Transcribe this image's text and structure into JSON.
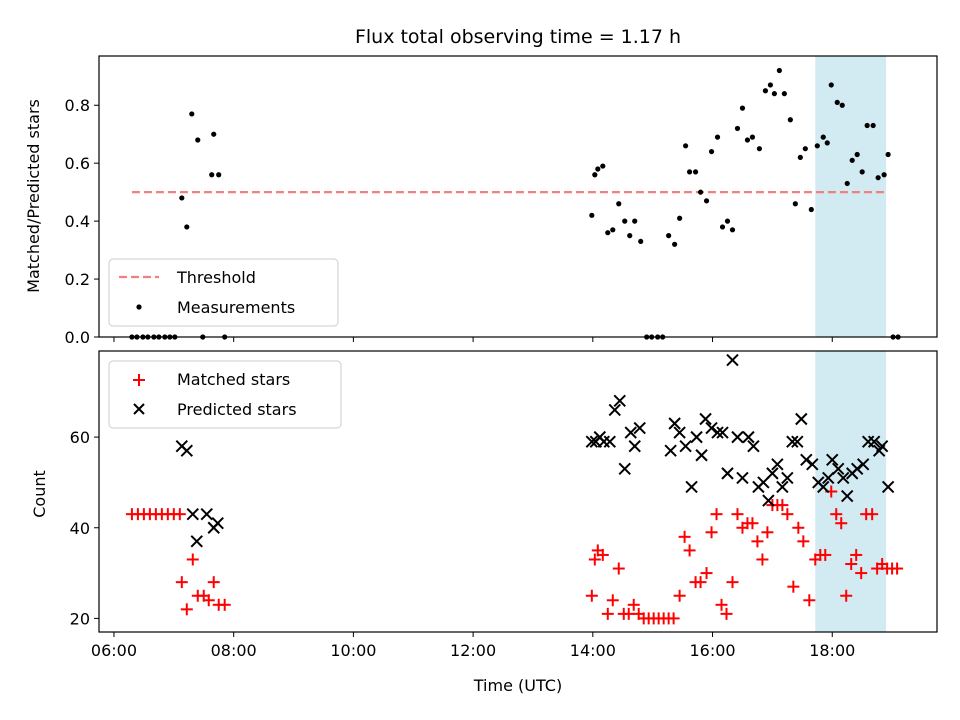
{
  "chart_data": [
    {
      "type": "scatter",
      "title": "Flux total observing time = 1.17 h",
      "ylabel": "Matched/Predicted stars",
      "xlim": [
        "05:45",
        "19:45"
      ],
      "ylim": [
        0,
        0.97
      ],
      "yticks": [
        0.0,
        0.2,
        0.4,
        0.6,
        0.8
      ],
      "ytick_labels": [
        "0.0",
        "0.2",
        "0.4",
        "0.6",
        "0.8"
      ],
      "legend_position": "lower-left",
      "highlight_span": {
        "x": [
          "17:43",
          "18:54"
        ],
        "color": "#add8e6"
      },
      "threshold": {
        "name": "Threshold",
        "value": 0.5,
        "x": [
          "06:18",
          "18:54"
        ],
        "color": "#f08080",
        "style": "dashed"
      },
      "series": [
        {
          "name": "Measurements",
          "marker": "dot",
          "color": "#000000",
          "points": [
            [
              "06:18",
              0
            ],
            [
              "06:23",
              0
            ],
            [
              "06:29",
              0
            ],
            [
              "06:34",
              0
            ],
            [
              "06:40",
              0
            ],
            [
              "06:45",
              0
            ],
            [
              "06:51",
              0
            ],
            [
              "06:56",
              0
            ],
            [
              "07:01",
              0
            ],
            [
              "07:08",
              0.48
            ],
            [
              "07:13",
              0.38
            ],
            [
              "07:18",
              0.77
            ],
            [
              "07:24",
              0.68
            ],
            [
              "07:29",
              0
            ],
            [
              "07:38",
              0.56
            ],
            [
              "07:40",
              0.7
            ],
            [
              "07:45",
              0.56
            ],
            [
              "07:51",
              0
            ],
            [
              "13:59",
              0.42
            ],
            [
              "14:02",
              0.56
            ],
            [
              "14:05",
              0.58
            ],
            [
              "14:10",
              0.59
            ],
            [
              "14:15",
              0.36
            ],
            [
              "14:20",
              0.37
            ],
            [
              "14:26",
              0.46
            ],
            [
              "14:32",
              0.4
            ],
            [
              "14:37",
              0.35
            ],
            [
              "14:42",
              0.4
            ],
            [
              "14:48",
              0.33
            ],
            [
              "14:54",
              0
            ],
            [
              "14:59",
              0
            ],
            [
              "15:05",
              0
            ],
            [
              "15:10",
              0
            ],
            [
              "15:16",
              0.35
            ],
            [
              "15:22",
              0.32
            ],
            [
              "15:27",
              0.41
            ],
            [
              "15:33",
              0.66
            ],
            [
              "15:37",
              0.57
            ],
            [
              "15:43",
              0.57
            ],
            [
              "15:48",
              0.5
            ],
            [
              "15:54",
              0.47
            ],
            [
              "15:59",
              0.64
            ],
            [
              "16:05",
              0.69
            ],
            [
              "16:10",
              0.38
            ],
            [
              "16:15",
              0.4
            ],
            [
              "16:20",
              0.37
            ],
            [
              "16:25",
              0.72
            ],
            [
              "16:30",
              0.79
            ],
            [
              "16:35",
              0.68
            ],
            [
              "16:40",
              0.69
            ],
            [
              "16:47",
              0.65
            ],
            [
              "16:53",
              0.85
            ],
            [
              "16:58",
              0.87
            ],
            [
              "17:02",
              0.84
            ],
            [
              "17:07",
              0.92
            ],
            [
              "17:12",
              0.84
            ],
            [
              "17:18",
              0.75
            ],
            [
              "17:23",
              0.46
            ],
            [
              "17:28",
              0.62
            ],
            [
              "17:33",
              0.65
            ],
            [
              "17:39",
              0.44
            ],
            [
              "17:45",
              0.66
            ],
            [
              "17:51",
              0.69
            ],
            [
              "17:55",
              0.67
            ],
            [
              "17:59",
              0.87
            ],
            [
              "18:05",
              0.81
            ],
            [
              "18:10",
              0.8
            ],
            [
              "18:15",
              0.53
            ],
            [
              "18:20",
              0.61
            ],
            [
              "18:25",
              0.63
            ],
            [
              "18:30",
              0.57
            ],
            [
              "18:35",
              0.73
            ],
            [
              "18:41",
              0.73
            ],
            [
              "18:46",
              0.55
            ],
            [
              "18:52",
              0.56
            ],
            [
              "18:56",
              0.63
            ],
            [
              "19:01",
              0
            ],
            [
              "19:06",
              0
            ]
          ]
        }
      ]
    },
    {
      "type": "scatter",
      "xlabel": "Time (UTC)",
      "ylabel": "Count",
      "xlim": [
        "05:45",
        "19:45"
      ],
      "ylim": [
        17,
        79
      ],
      "xticks": [
        "06:00",
        "08:00",
        "10:00",
        "12:00",
        "14:00",
        "16:00",
        "18:00"
      ],
      "xtick_labels": [
        "06:00",
        "08:00",
        "10:00",
        "12:00",
        "14:00",
        "16:00",
        "18:00"
      ],
      "yticks": [
        20,
        40,
        60
      ],
      "ytick_labels": [
        "20",
        "40",
        "60"
      ],
      "legend_position": "upper-left",
      "highlight_span": {
        "x": [
          "17:43",
          "18:54"
        ],
        "color": "#add8e6"
      },
      "series": [
        {
          "name": "Matched stars",
          "marker": "plus",
          "color": "#ff0000",
          "points": [
            [
              "06:18",
              43
            ],
            [
              "06:24",
              43
            ],
            [
              "06:30",
              43
            ],
            [
              "06:36",
              43
            ],
            [
              "06:42",
              43
            ],
            [
              "06:48",
              43
            ],
            [
              "06:54",
              43
            ],
            [
              "07:00",
              43
            ],
            [
              "07:06",
              43
            ],
            [
              "07:08",
              28
            ],
            [
              "07:13",
              22
            ],
            [
              "07:19",
              33
            ],
            [
              "07:24",
              25
            ],
            [
              "07:30",
              25
            ],
            [
              "07:35",
              24
            ],
            [
              "07:40",
              28
            ],
            [
              "07:45",
              23
            ],
            [
              "07:51",
              23
            ],
            [
              "13:59",
              25
            ],
            [
              "14:02",
              33
            ],
            [
              "14:05",
              35
            ],
            [
              "14:10",
              34
            ],
            [
              "14:15",
              21
            ],
            [
              "14:20",
              24
            ],
            [
              "14:26",
              31
            ],
            [
              "14:31",
              21
            ],
            [
              "14:36",
              21
            ],
            [
              "14:41",
              23
            ],
            [
              "14:46",
              21
            ],
            [
              "14:51",
              20
            ],
            [
              "14:56",
              20
            ],
            [
              "15:01",
              20
            ],
            [
              "15:06",
              20
            ],
            [
              "15:11",
              20
            ],
            [
              "15:16",
              20
            ],
            [
              "15:21",
              20
            ],
            [
              "15:27",
              25
            ],
            [
              "15:32",
              38
            ],
            [
              "15:37",
              35
            ],
            [
              "15:43",
              28
            ],
            [
              "15:48",
              28
            ],
            [
              "15:54",
              30
            ],
            [
              "15:59",
              39
            ],
            [
              "16:04",
              43
            ],
            [
              "16:09",
              23
            ],
            [
              "16:14",
              21
            ],
            [
              "16:20",
              28
            ],
            [
              "16:25",
              43
            ],
            [
              "16:30",
              40
            ],
            [
              "16:35",
              41
            ],
            [
              "16:40",
              41
            ],
            [
              "16:45",
              37
            ],
            [
              "16:50",
              33
            ],
            [
              "16:55",
              39
            ],
            [
              "17:00",
              45
            ],
            [
              "17:05",
              45
            ],
            [
              "17:10",
              45
            ],
            [
              "17:15",
              43
            ],
            [
              "17:21",
              27
            ],
            [
              "17:26",
              40
            ],
            [
              "17:31",
              37
            ],
            [
              "17:37",
              24
            ],
            [
              "17:43",
              33
            ],
            [
              "17:48",
              34
            ],
            [
              "17:53",
              34
            ],
            [
              "17:59",
              48
            ],
            [
              "18:04",
              43
            ],
            [
              "18:09",
              41
            ],
            [
              "18:14",
              25
            ],
            [
              "18:19",
              32
            ],
            [
              "18:24",
              34
            ],
            [
              "18:29",
              30
            ],
            [
              "18:34",
              43
            ],
            [
              "18:40",
              43
            ],
            [
              "18:45",
              31
            ],
            [
              "18:50",
              32
            ],
            [
              "18:55",
              31
            ],
            [
              "19:00",
              31
            ],
            [
              "19:05",
              31
            ]
          ]
        },
        {
          "name": "Predicted stars",
          "marker": "x",
          "color": "#000000",
          "points": [
            [
              "07:08",
              58
            ],
            [
              "07:13",
              57
            ],
            [
              "07:19",
              43
            ],
            [
              "07:23",
              37
            ],
            [
              "07:33",
              43
            ],
            [
              "07:40",
              40
            ],
            [
              "07:44",
              41
            ],
            [
              "13:59",
              59
            ],
            [
              "14:03",
              59
            ],
            [
              "14:07",
              60
            ],
            [
              "14:11",
              59
            ],
            [
              "14:17",
              59
            ],
            [
              "14:22",
              66
            ],
            [
              "14:27",
              68
            ],
            [
              "14:32",
              53
            ],
            [
              "14:38",
              61
            ],
            [
              "14:42",
              58
            ],
            [
              "14:47",
              62
            ],
            [
              "15:18",
              57
            ],
            [
              "15:22",
              63
            ],
            [
              "15:27",
              61
            ],
            [
              "15:33",
              58
            ],
            [
              "15:39",
              49
            ],
            [
              "15:44",
              60
            ],
            [
              "15:49",
              56
            ],
            [
              "15:53",
              64
            ],
            [
              "15:59",
              62
            ],
            [
              "16:05",
              61
            ],
            [
              "16:10",
              61
            ],
            [
              "16:15",
              52
            ],
            [
              "16:20",
              77
            ],
            [
              "16:25",
              60
            ],
            [
              "16:30",
              51
            ],
            [
              "16:36",
              60
            ],
            [
              "16:41",
              58
            ],
            [
              "16:46",
              49
            ],
            [
              "16:51",
              50
            ],
            [
              "16:56",
              46
            ],
            [
              "17:00",
              52
            ],
            [
              "17:05",
              54
            ],
            [
              "17:10",
              49
            ],
            [
              "17:15",
              51
            ],
            [
              "17:20",
              59
            ],
            [
              "17:25",
              59
            ],
            [
              "17:29",
              64
            ],
            [
              "17:34",
              55
            ],
            [
              "17:40",
              54
            ],
            [
              "17:46",
              50
            ],
            [
              "17:51",
              49
            ],
            [
              "17:56",
              51
            ],
            [
              "18:00",
              55
            ],
            [
              "18:06",
              53
            ],
            [
              "18:11",
              51
            ],
            [
              "18:15",
              47
            ],
            [
              "18:20",
              52
            ],
            [
              "18:25",
              53
            ],
            [
              "18:31",
              54
            ],
            [
              "18:36",
              59
            ],
            [
              "18:42",
              59
            ],
            [
              "18:47",
              57
            ],
            [
              "18:50",
              58
            ],
            [
              "18:56",
              49
            ]
          ]
        }
      ]
    }
  ]
}
